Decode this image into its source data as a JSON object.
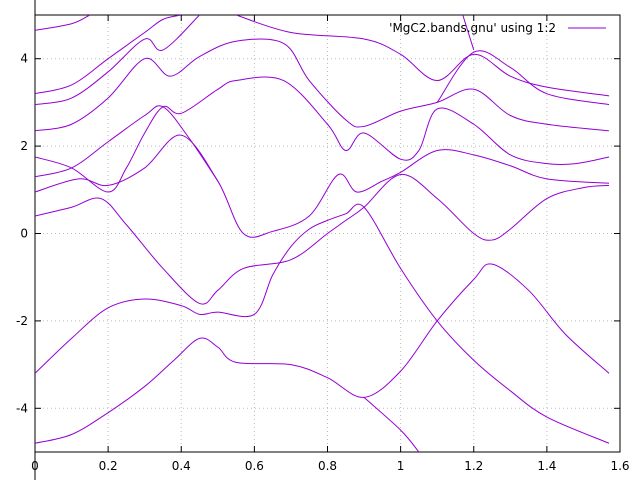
{
  "chart_data": {
    "type": "line",
    "legend": {
      "label": "'MgC2.bands.gnu' using 1:2",
      "placement": "top-right"
    },
    "xlim": [
      0,
      1.6
    ],
    "ylim": [
      -5,
      5
    ],
    "x_ticks": [
      0,
      0.2,
      0.4,
      0.6,
      0.8,
      1,
      1.2,
      1.4,
      1.6
    ],
    "x_tick_labels": [
      "0",
      "0.2",
      "0.4",
      "0.6",
      "0.8",
      "1",
      "1.2",
      "1.4",
      "1.6"
    ],
    "y_ticks": [
      -4,
      -2,
      0,
      2,
      4
    ],
    "y_tick_labels": [
      "-4",
      "-2",
      "0",
      "2",
      "4"
    ],
    "grid": true,
    "line_color": "#9400d3",
    "series": [
      {
        "points": [
          [
            0,
            -4.8
          ],
          [
            0.1,
            -4.6
          ],
          [
            0.2,
            -4.1
          ],
          [
            0.3,
            -3.5
          ],
          [
            0.38,
            -2.9
          ],
          [
            0.45,
            -2.4
          ],
          [
            0.5,
            -2.6
          ],
          [
            0.55,
            -2.95
          ],
          [
            0.7,
            -3.0
          ],
          [
            0.8,
            -3.3
          ],
          [
            0.9,
            -3.75
          ],
          [
            1.0,
            -3.15
          ],
          [
            1.1,
            -2.0
          ],
          [
            1.2,
            -1.05
          ],
          [
            1.25,
            -0.7
          ],
          [
            1.35,
            -1.3
          ],
          [
            1.45,
            -2.3
          ],
          [
            1.57,
            -3.2
          ]
        ]
      },
      {
        "points": [
          [
            0,
            -3.2
          ],
          [
            0.1,
            -2.4
          ],
          [
            0.2,
            -1.7
          ],
          [
            0.3,
            -1.5
          ],
          [
            0.4,
            -1.65
          ],
          [
            0.45,
            -1.85
          ],
          [
            0.5,
            -1.8
          ],
          [
            0.6,
            -1.85
          ],
          [
            0.65,
            -0.95
          ],
          [
            0.7,
            -0.3
          ],
          [
            0.75,
            0.1
          ],
          [
            0.8,
            0.3
          ],
          [
            0.85,
            0.45
          ],
          [
            0.9,
            0.6
          ],
          [
            1.0,
            -0.8
          ],
          [
            1.1,
            -2.0
          ],
          [
            1.2,
            -2.9
          ],
          [
            1.3,
            -3.6
          ],
          [
            1.4,
            -4.2
          ],
          [
            1.57,
            -4.8
          ]
        ]
      },
      {
        "points": [
          [
            0,
            0.4
          ],
          [
            0.1,
            0.6
          ],
          [
            0.18,
            0.8
          ],
          [
            0.25,
            0.2
          ],
          [
            0.35,
            -0.8
          ],
          [
            0.45,
            -1.6
          ],
          [
            0.5,
            -1.3
          ],
          [
            0.57,
            -0.8
          ],
          [
            0.7,
            -0.6
          ],
          [
            0.8,
            0.0
          ],
          [
            0.85,
            0.3
          ],
          [
            0.9,
            0.6
          ],
          [
            1.0,
            1.35
          ],
          [
            1.1,
            0.8
          ],
          [
            1.2,
            0.0
          ],
          [
            1.25,
            -0.15
          ],
          [
            1.3,
            0.1
          ],
          [
            1.4,
            0.8
          ],
          [
            1.5,
            1.05
          ],
          [
            1.57,
            1.1
          ]
        ]
      },
      {
        "points": [
          [
            0,
            0.95
          ],
          [
            0.12,
            1.25
          ],
          [
            0.2,
            1.1
          ],
          [
            0.3,
            1.5
          ],
          [
            0.4,
            2.25
          ],
          [
            0.5,
            1.2
          ],
          [
            0.57,
            0.0
          ],
          [
            0.65,
            0.05
          ],
          [
            0.75,
            0.4
          ],
          [
            0.83,
            1.35
          ],
          [
            0.88,
            0.95
          ],
          [
            0.95,
            1.2
          ],
          [
            1.0,
            1.4
          ],
          [
            1.1,
            1.9
          ],
          [
            1.2,
            1.8
          ],
          [
            1.3,
            1.55
          ],
          [
            1.4,
            1.25
          ],
          [
            1.57,
            1.15
          ]
        ]
      },
      {
        "points": [
          [
            0,
            1.75
          ],
          [
            0.1,
            1.5
          ],
          [
            0.2,
            0.95
          ],
          [
            0.25,
            1.5
          ],
          [
            0.3,
            2.3
          ],
          [
            0.35,
            2.9
          ],
          [
            0.4,
            2.75
          ],
          [
            0.5,
            3.3
          ],
          [
            0.55,
            3.5
          ],
          [
            0.68,
            3.5
          ],
          [
            0.8,
            2.5
          ],
          [
            0.85,
            1.9
          ],
          [
            0.9,
            2.3
          ],
          [
            1.0,
            1.7
          ],
          [
            1.05,
            1.9
          ],
          [
            1.1,
            2.85
          ],
          [
            1.2,
            2.5
          ],
          [
            1.3,
            1.8
          ],
          [
            1.4,
            1.6
          ],
          [
            1.48,
            1.6
          ],
          [
            1.57,
            1.75
          ]
        ]
      },
      {
        "points": [
          [
            0,
            1.3
          ],
          [
            0.1,
            1.5
          ],
          [
            0.2,
            2.1
          ],
          [
            0.3,
            2.7
          ],
          [
            0.35,
            2.9
          ],
          [
            0.42,
            2.2
          ],
          [
            0.5,
            1.2
          ]
        ]
      },
      {
        "points": [
          [
            0,
            2.35
          ],
          [
            0.1,
            2.5
          ],
          [
            0.2,
            3.1
          ],
          [
            0.3,
            4.0
          ],
          [
            0.37,
            3.6
          ],
          [
            0.45,
            4.05
          ],
          [
            0.55,
            4.4
          ],
          [
            0.68,
            4.35
          ],
          [
            0.75,
            3.5
          ],
          [
            0.85,
            2.6
          ],
          [
            0.9,
            2.45
          ],
          [
            1.0,
            2.8
          ],
          [
            1.1,
            3.0
          ],
          [
            1.2,
            3.3
          ],
          [
            1.3,
            2.7
          ],
          [
            1.4,
            2.5
          ],
          [
            1.57,
            2.35
          ]
        ]
      },
      {
        "points": [
          [
            0,
            2.95
          ],
          [
            0.1,
            3.1
          ],
          [
            0.2,
            3.7
          ],
          [
            0.3,
            4.45
          ],
          [
            0.35,
            4.2
          ],
          [
            0.45,
            5.0
          ]
        ]
      },
      {
        "points": [
          [
            0,
            3.2
          ],
          [
            0.1,
            3.4
          ],
          [
            0.2,
            4.0
          ],
          [
            0.3,
            4.6
          ],
          [
            0.35,
            4.9
          ],
          [
            0.4,
            5.0
          ]
        ]
      },
      {
        "points": [
          [
            0,
            4.65
          ],
          [
            0.1,
            4.8
          ],
          [
            0.15,
            5.0
          ]
        ]
      },
      {
        "points": [
          [
            0.55,
            5.0
          ],
          [
            0.7,
            4.6
          ],
          [
            0.9,
            4.45
          ],
          [
            1.0,
            4.1
          ],
          [
            1.1,
            3.5
          ],
          [
            1.2,
            4.1
          ],
          [
            1.3,
            3.6
          ],
          [
            1.4,
            3.35
          ],
          [
            1.57,
            3.15
          ]
        ]
      },
      {
        "points": [
          [
            1.1,
            3.0
          ],
          [
            1.2,
            4.15
          ],
          [
            1.3,
            3.8
          ],
          [
            1.4,
            3.2
          ],
          [
            1.57,
            2.95
          ]
        ]
      },
      {
        "points": [
          [
            1.17,
            5.0
          ],
          [
            1.2,
            4.2
          ]
        ]
      },
      {
        "points": [
          [
            0.9,
            -3.75
          ],
          [
            1.0,
            -4.5
          ],
          [
            1.05,
            -5.0
          ]
        ]
      }
    ]
  }
}
